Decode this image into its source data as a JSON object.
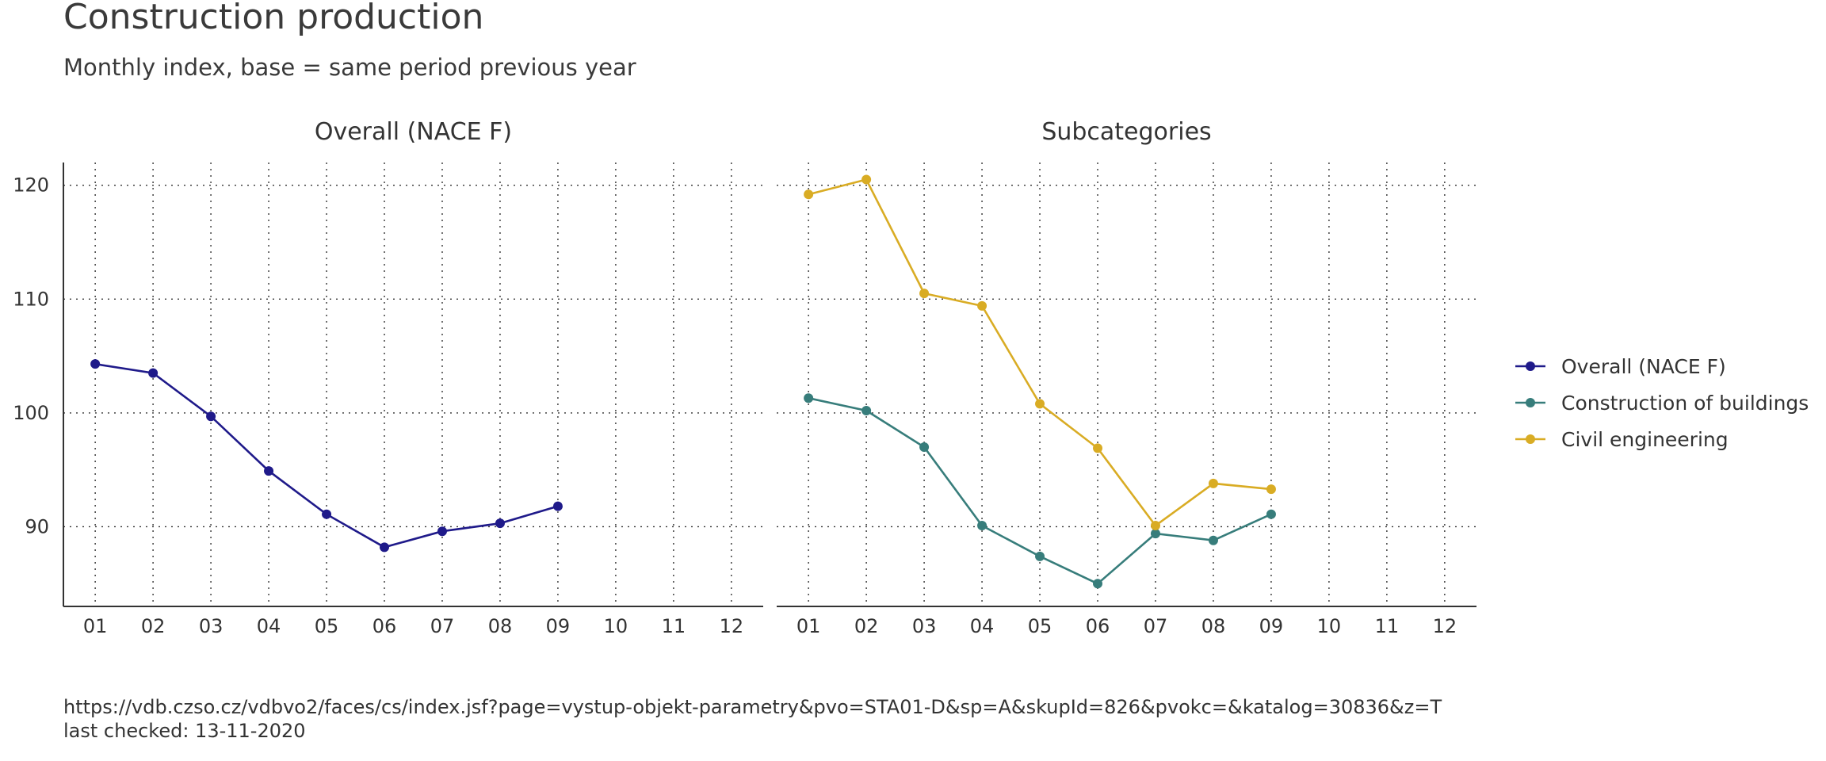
{
  "title": "Construction production",
  "subtitle": "Monthly index, base = same period previous year",
  "caption": {
    "url": "https://vdb.czso.cz/vdbvo2/faces/cs/index.jsf?page=vystup-objekt-parametry&pvo=STA01-D&sp=A&skupId=826&pvokc=&katalog=30836&z=T",
    "last_checked": "last checked: 13-11-2020"
  },
  "chart_data": {
    "type": "line",
    "x_ticks": [
      "01",
      "02",
      "03",
      "04",
      "05",
      "06",
      "07",
      "08",
      "09",
      "10",
      "11",
      "12"
    ],
    "y_ticks": [
      90,
      100,
      110,
      120
    ],
    "ylim": [
      83,
      122
    ],
    "xlim": [
      0.45,
      12.55
    ],
    "grid": true,
    "legend_position": "right",
    "facets": [
      {
        "title": "Overall (NACE F)",
        "series": [
          {
            "name": "Overall (NACE F)",
            "color": "#1f1a8a",
            "x": [
              1,
              2,
              3,
              4,
              5,
              6,
              7,
              8,
              9
            ],
            "y": [
              104.3,
              103.5,
              99.7,
              94.9,
              91.1,
              88.2,
              89.6,
              90.3,
              91.8
            ]
          }
        ]
      },
      {
        "title": "Subcategories",
        "series": [
          {
            "name": "Construction of buildings",
            "color": "#377d7b",
            "x": [
              1,
              2,
              3,
              4,
              5,
              6,
              7,
              8,
              9
            ],
            "y": [
              101.3,
              100.2,
              97.0,
              90.1,
              87.4,
              85.0,
              89.4,
              88.8,
              91.1
            ]
          },
          {
            "name": "Civil engineering",
            "color": "#d9ac24",
            "x": [
              1,
              2,
              3,
              4,
              5,
              6,
              7,
              8,
              9
            ],
            "y": [
              119.2,
              120.5,
              110.5,
              109.4,
              100.8,
              96.9,
              90.1,
              93.8,
              93.3
            ]
          }
        ]
      }
    ],
    "legend": [
      {
        "label": "Overall (NACE F)",
        "color": "#1f1a8a"
      },
      {
        "label": "Construction of buildings",
        "color": "#377d7b"
      },
      {
        "label": "Civil engineering",
        "color": "#d9ac24"
      }
    ]
  }
}
